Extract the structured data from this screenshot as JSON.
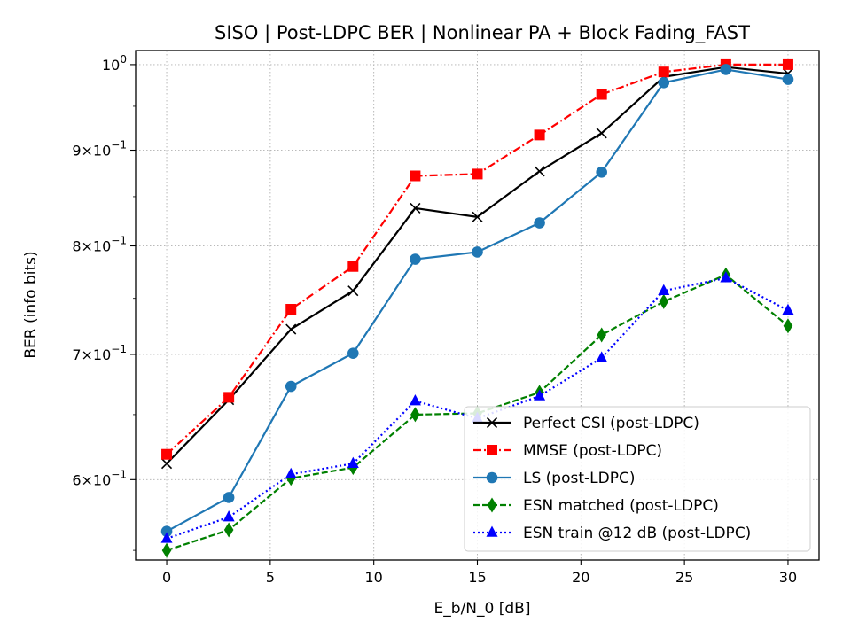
{
  "chart_data": {
    "type": "line",
    "title": "SISO | Post-LDPC BER | Nonlinear PA + Block Fading_FAST",
    "xlabel": "E_b/N_0 [dB]",
    "ylabel": "BER (info bits)",
    "y_scale": "log",
    "xlim": [
      -1.5,
      31.5
    ],
    "ylim": [
      0.5435,
      1.0175
    ],
    "x_ticks": [
      0,
      5,
      10,
      15,
      20,
      25,
      30
    ],
    "x_tick_labels": [
      "0",
      "5",
      "10",
      "15",
      "20",
      "25",
      "30"
    ],
    "y_ticks": [
      0.6,
      0.7,
      0.8,
      0.9,
      1.0
    ],
    "y_tick_labels": [
      {
        "base": "6",
        "exp": "−1",
        "times": true
      },
      {
        "base": "7",
        "exp": "−1",
        "times": true
      },
      {
        "base": "8",
        "exp": "−1",
        "times": true
      },
      {
        "base": "9",
        "exp": "−1",
        "times": true
      },
      {
        "base": "10",
        "exp": "0",
        "times": false
      }
    ],
    "grid": true,
    "legend_position": "lower-right",
    "x": [
      0,
      3,
      6,
      9,
      12,
      15,
      18,
      21,
      24,
      27,
      30
    ],
    "series": [
      {
        "name": "Perfect CSI (post-LDPC)",
        "color": "#000000",
        "dash": "solid",
        "marker": "x",
        "values": [
          0.612,
          0.662,
          0.722,
          0.757,
          0.838,
          0.829,
          0.877,
          0.919,
          0.985,
          0.997,
          0.989
        ]
      },
      {
        "name": "MMSE (post-LDPC)",
        "color": "#ff0000",
        "dash": "dashdot",
        "marker": "square",
        "values": [
          0.619,
          0.664,
          0.74,
          0.78,
          0.872,
          0.874,
          0.917,
          0.964,
          0.991,
          1.0,
          1.0
        ]
      },
      {
        "name": "LS (post-LDPC)",
        "color": "#1f77b4",
        "dash": "solid",
        "marker": "circle",
        "values": [
          0.563,
          0.587,
          0.673,
          0.701,
          0.787,
          0.794,
          0.823,
          0.876,
          0.978,
          0.994,
          0.982
        ]
      },
      {
        "name": "ESN matched (post-LDPC)",
        "color": "#008000",
        "dash": "dashed",
        "marker": "thin-diamond",
        "values": [
          0.55,
          0.564,
          0.601,
          0.609,
          0.65,
          0.651,
          0.668,
          0.717,
          0.747,
          0.772,
          0.725
        ]
      },
      {
        "name": "ESN train @12 dB (post-LDPC)",
        "color": "#0000ff",
        "dash": "dotted",
        "marker": "triangle",
        "values": [
          0.558,
          0.573,
          0.604,
          0.612,
          0.661,
          0.647,
          0.665,
          0.697,
          0.757,
          0.769,
          0.739
        ]
      }
    ]
  }
}
